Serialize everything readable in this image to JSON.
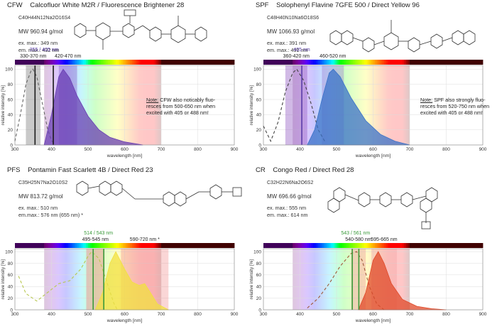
{
  "panels": [
    {
      "code": "CFW",
      "title": "Calcofluor White M2R / Fluorescence Brightener 28",
      "formula": "C40H44N12Na2O16S4",
      "mw": "MW 960.94 g/mol",
      "ex": "ex. max.: 349 nm",
      "em": "em. max.: 432 nm",
      "note_head": "Note:",
      "note_line1": "CFW also noticably fluo-",
      "note_line2": "resces from 500-650 nm when",
      "note_line3": "excited with 405 or 488 nm!",
      "laser_label": "355 / 405 nm",
      "band_labels": [
        "330-370 nm",
        "420-470 nm"
      ],
      "colors": {
        "emission": "#6a3fb3",
        "laser": "#1a1a1a",
        "band": "#7a4fc0",
        "excitation": "#666666"
      }
    },
    {
      "code": "SPF",
      "title": "Solophenyl Flavine 7GFE 500 / Direct Yellow 96",
      "formula": "C48H40N10Na6O18S6",
      "mw": "MW 1066.93 g/mol",
      "ex": "ex. max.: 391 nm",
      "em": "em. max.: 491 nm",
      "note_head": "Note:",
      "note_line1": "SPF also strongly fluo-",
      "note_line2": "resces from 520-750 nm when",
      "note_line3": "excited with 405 or 488 nm!",
      "laser_label": "405 nm",
      "band_labels": [
        "360-420 nm",
        "460-520 nm"
      ],
      "colors": {
        "emission": "#3b72c8",
        "laser": "#5a3da8",
        "band": "#9a66c8",
        "excitation": "#444444"
      }
    },
    {
      "code": "PFS",
      "title": "Pontamin Fast Scarlett 4B / Direct Red 23",
      "formula": "C35H25N7Na2O10S2",
      "mw": "MW 813.72 g/mol",
      "ex": "ex. max.: 510 nm",
      "em": "em.max.: 576 nm (655 nm) *",
      "laser_label": "514 / 543 nm",
      "band_labels": [
        "495-545 nm",
        "590-720 nm *"
      ],
      "colors": {
        "emission": "#f2e040",
        "laser": "#3a9a3a",
        "band": "#f28a8a",
        "excitation": "#b8c850"
      }
    },
    {
      "code": "CR",
      "title": "Congo Red / Direct Red 28",
      "formula": "C32H22N6Na2O6S2",
      "mw": "MW 696.66 g/mol",
      "ex": "ex. max.: 555 nm",
      "em": "em. max.: 614 nm",
      "laser_label": "543 / 561 nm",
      "band_labels": [
        "540-580 nm",
        "595-665 nm"
      ],
      "colors": {
        "emission": "#e04a2a",
        "laser": "#3a9a3a",
        "band": "#f2a0a0",
        "excitation": "#a05a3a"
      }
    }
  ],
  "axes": {
    "ylabel": "relative intensity [%]",
    "xlabel": "wavelength [nm]",
    "xticks": [
      "300",
      "400",
      "500",
      "600",
      "700",
      "800",
      "900"
    ],
    "yticks": [
      "0",
      "20",
      "40",
      "60",
      "80",
      "100"
    ]
  },
  "chart_data": [
    {
      "type": "area",
      "panel": "CFW",
      "xlim": [
        300,
        900
      ],
      "ylim": [
        0,
        105
      ],
      "xlabel": "wavelength [nm]",
      "ylabel": "relative intensity [%]",
      "series": [
        {
          "x": [
            300,
            315,
            330,
            345,
            349,
            360,
            375,
            390,
            400,
            410
          ],
          "y": [
            5,
            40,
            80,
            99,
            100,
            90,
            55,
            20,
            6,
            0
          ]
        },
        {
          "x": [
            380,
            400,
            420,
            432,
            450,
            470,
            500,
            530,
            560,
            600,
            650
          ],
          "y": [
            0,
            40,
            90,
            100,
            88,
            65,
            38,
            20,
            10,
            4,
            0
          ]
        }
      ],
      "bands_nm": [
        [
          330,
          370
        ],
        [
          420,
          470
        ]
      ],
      "lasers_nm": [
        355,
        405
      ]
    },
    {
      "type": "area",
      "panel": "SPF",
      "xlim": [
        300,
        900
      ],
      "ylim": [
        0,
        105
      ],
      "xlabel": "wavelength [nm]",
      "ylabel": "relative intensity [%]",
      "series": [
        {
          "x": [
            300,
            320,
            340,
            360,
            380,
            391,
            410,
            430,
            450,
            470
          ],
          "y": [
            25,
            5,
            30,
            70,
            95,
            100,
            85,
            55,
            20,
            3
          ]
        },
        {
          "x": [
            420,
            440,
            460,
            480,
            491,
            510,
            540,
            580,
            620,
            660,
            700
          ],
          "y": [
            0,
            20,
            60,
            95,
            100,
            90,
            62,
            32,
            14,
            5,
            0
          ]
        }
      ],
      "bands_nm": [
        [
          360,
          420
        ],
        [
          460,
          520
        ]
      ],
      "lasers_nm": [
        405
      ]
    },
    {
      "type": "area",
      "panel": "PFS",
      "xlim": [
        300,
        900
      ],
      "ylim": [
        0,
        105
      ],
      "xlabel": "wavelength [nm]",
      "ylabel": "relative intensity [%]",
      "series": [
        {
          "x": [
            310,
            330,
            360,
            390,
            420,
            450,
            480,
            500,
            510,
            530,
            550,
            570,
            580
          ],
          "y": [
            58,
            28,
            15,
            30,
            45,
            50,
            70,
            92,
            100,
            88,
            50,
            12,
            0
          ]
        },
        {
          "x": [
            520,
            540,
            560,
            576,
            600,
            620,
            640,
            655,
            670,
            690,
            720
          ],
          "y": [
            0,
            30,
            80,
            100,
            70,
            48,
            42,
            45,
            30,
            10,
            0
          ]
        }
      ],
      "bands_nm": [
        [
          495,
          545
        ],
        [
          590,
          720
        ]
      ],
      "lasers_nm": [
        514,
        543
      ]
    },
    {
      "type": "area",
      "panel": "CR",
      "xlim": [
        300,
        900
      ],
      "ylim": [
        0,
        105
      ],
      "xlabel": "wavelength [nm]",
      "ylabel": "relative intensity [%]",
      "series": [
        {
          "x": [
            420,
            450,
            480,
            510,
            540,
            555,
            570,
            590,
            610,
            630
          ],
          "y": [
            3,
            20,
            45,
            75,
            97,
            100,
            85,
            40,
            10,
            0
          ]
        },
        {
          "x": [
            560,
            580,
            600,
            614,
            630,
            650,
            680,
            720,
            760,
            800
          ],
          "y": [
            0,
            30,
            85,
            100,
            80,
            45,
            18,
            6,
            2,
            0
          ]
        }
      ],
      "bands_nm": [
        [
          540,
          580
        ],
        [
          595,
          665
        ]
      ],
      "lasers_nm": [
        543,
        561
      ]
    }
  ]
}
